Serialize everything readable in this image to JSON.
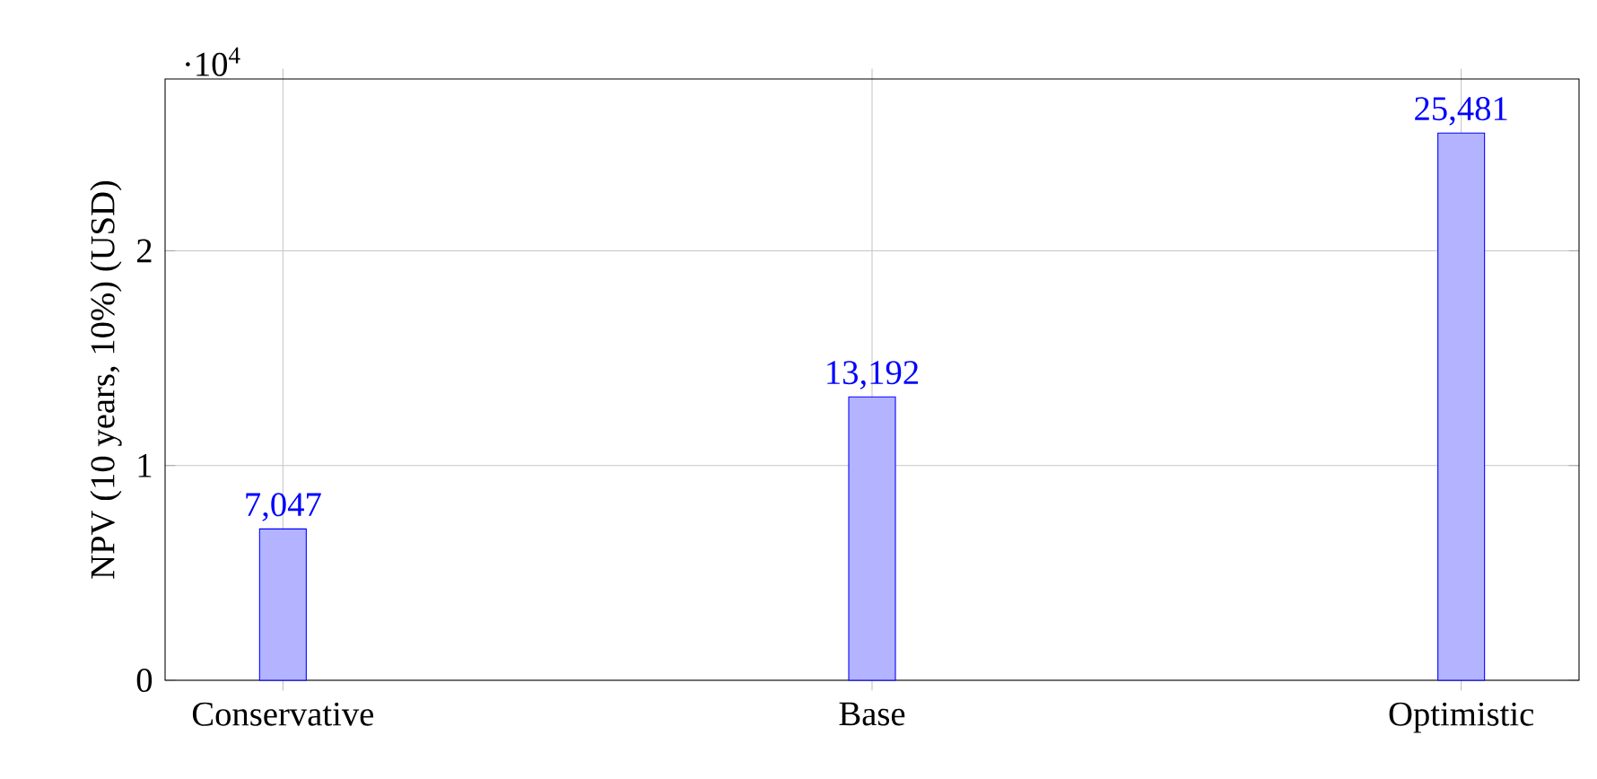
{
  "chart_data": {
    "type": "bar",
    "categories": [
      "Conservative",
      "Base",
      "Optimistic"
    ],
    "values": [
      0.7047,
      1.3192,
      2.5481
    ],
    "color": "#b3b3ff",
    "ylabel": "NPV (10 years, 10%) (USD)",
    "ylim": [
      0,
      2.8
    ],
    "yticks": [
      0,
      1,
      2
    ],
    "annotations": [
      "·10$^{4}$",
      {
        "text": "7,047",
        "x": "Conservative",
        "y": 0.7047
      },
      {
        "text": "13,192",
        "x": "Base",
        "y": 1.3192
      },
      {
        "text": "25,481",
        "x": "Optimistic",
        "y": 2.5481
      }
    ],
    "grid": true
  }
}
